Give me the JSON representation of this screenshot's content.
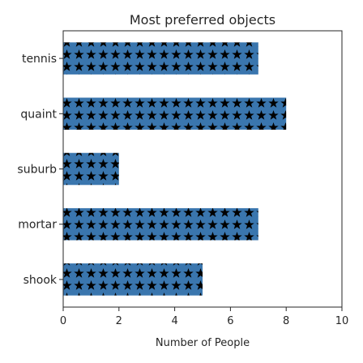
{
  "chart_data": {
    "type": "bar",
    "orientation": "horizontal",
    "title": "Most preferred objects",
    "xlabel": "Number of People",
    "ylabel": "",
    "categories": [
      "tennis",
      "quaint",
      "suburb",
      "mortar",
      "shook"
    ],
    "values": [
      7,
      8,
      2,
      7,
      5
    ],
    "xlim": [
      0,
      10
    ],
    "xticks": [
      "0",
      "2",
      "4",
      "6",
      "8",
      "10"
    ],
    "grid": false,
    "legend": "none",
    "bar_color": "#3a76ae",
    "pattern": "star-icon",
    "pattern_color": "#000000"
  }
}
